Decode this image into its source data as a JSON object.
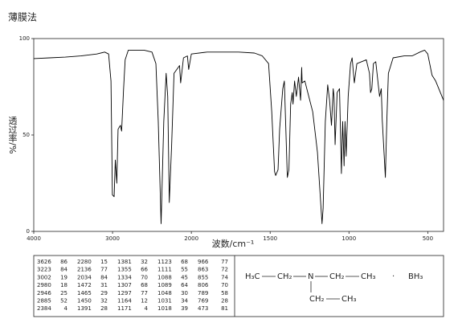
{
  "chart_data": {
    "type": "line",
    "title": "薄膜法",
    "x_label": "波数/cm⁻¹",
    "y_label": "透过率/%",
    "color": "#000000",
    "x_scale": "piecewise",
    "xlim": [
      4000,
      400
    ],
    "xticks": [
      4000,
      3000,
      2000,
      1500,
      1000,
      500
    ],
    "ylim": [
      0,
      100
    ],
    "yticks": [
      0,
      50,
      100
    ],
    "x": [
      4000,
      3800,
      3600,
      3400,
      3200,
      3100,
      3050,
      3020,
      3002,
      2980,
      2965,
      2946,
      2930,
      2900,
      2885,
      2860,
      2840,
      2800,
      2700,
      2600,
      2500,
      2450,
      2420,
      2384,
      2350,
      2320,
      2300,
      2280,
      2250,
      2220,
      2150,
      2136,
      2100,
      2050,
      2034,
      2000,
      1900,
      1800,
      1700,
      1600,
      1550,
      1510,
      1490,
      1472,
      1465,
      1450,
      1440,
      1420,
      1410,
      1391,
      1381,
      1370,
      1360,
      1355,
      1345,
      1334,
      1320,
      1307,
      1300,
      1297,
      1280,
      1230,
      1200,
      1171,
      1164,
      1150,
      1135,
      1123,
      1111,
      1100,
      1095,
      1088,
      1075,
      1060,
      1048,
      1040,
      1031,
      1025,
      1018,
      1005,
      990,
      980,
      966,
      950,
      920,
      890,
      870,
      863,
      855,
      845,
      830,
      806,
      795,
      789,
      769,
      760,
      750,
      720,
      650,
      600,
      550,
      520,
      500,
      473,
      450,
      400
    ],
    "values": [
      89.6,
      90,
      90.4,
      91,
      92,
      93,
      92,
      78,
      19,
      18,
      37,
      25,
      53,
      55,
      52,
      74,
      89,
      94,
      94,
      94,
      93,
      87,
      57,
      4,
      57,
      82,
      70,
      15,
      45,
      82,
      86,
      77,
      90,
      91,
      84,
      92,
      93,
      93,
      93,
      92.5,
      91,
      87,
      62,
      31,
      29,
      32,
      53,
      74,
      78,
      28,
      32,
      66,
      72,
      66,
      78,
      70,
      80,
      68,
      85,
      77,
      78,
      62,
      41,
      4,
      12,
      57,
      76,
      68,
      55,
      74,
      70,
      45,
      72,
      74,
      30,
      57,
      34,
      57,
      39,
      70,
      87,
      90,
      77,
      87,
      88,
      89,
      82,
      72,
      74,
      87,
      88,
      70,
      74,
      58,
      28,
      57,
      82,
      90,
      91,
      91,
      93,
      94,
      92,
      81,
      78,
      68
    ]
  },
  "peak_table": {
    "groups": [
      {
        "rows": [
          [
            3626,
            86
          ],
          [
            3223,
            84
          ],
          [
            3002,
            19
          ],
          [
            2980,
            18
          ],
          [
            2946,
            25
          ],
          [
            2885,
            52
          ],
          [
            2384,
            4
          ]
        ]
      },
      {
        "rows": [
          [
            2280,
            15
          ],
          [
            2136,
            77
          ],
          [
            2034,
            84
          ],
          [
            1472,
            31
          ],
          [
            1465,
            29
          ],
          [
            1450,
            32
          ],
          [
            1391,
            28
          ]
        ]
      },
      {
        "rows": [
          [
            1381,
            32
          ],
          [
            1355,
            66
          ],
          [
            1334,
            70
          ],
          [
            1307,
            68
          ],
          [
            1297,
            77
          ],
          [
            1164,
            12
          ],
          [
            1171,
            4
          ]
        ]
      },
      {
        "rows": [
          [
            1123,
            68
          ],
          [
            1111,
            55
          ],
          [
            1088,
            45
          ],
          [
            1089,
            64
          ],
          [
            1048,
            30
          ],
          [
            1031,
            34
          ],
          [
            1018,
            39
          ]
        ]
      },
      {
        "rows": [
          [
            966,
            77
          ],
          [
            863,
            72
          ],
          [
            855,
            74
          ],
          [
            806,
            70
          ],
          [
            789,
            58
          ],
          [
            769,
            28
          ],
          [
            473,
            81
          ]
        ]
      }
    ]
  },
  "structure": {
    "groups": [
      "H₃C",
      "CH₂",
      "N",
      "CH₂",
      "CH₃",
      "CH₂",
      "CH₃"
    ],
    "dot": "·",
    "borane": "BH₃"
  }
}
